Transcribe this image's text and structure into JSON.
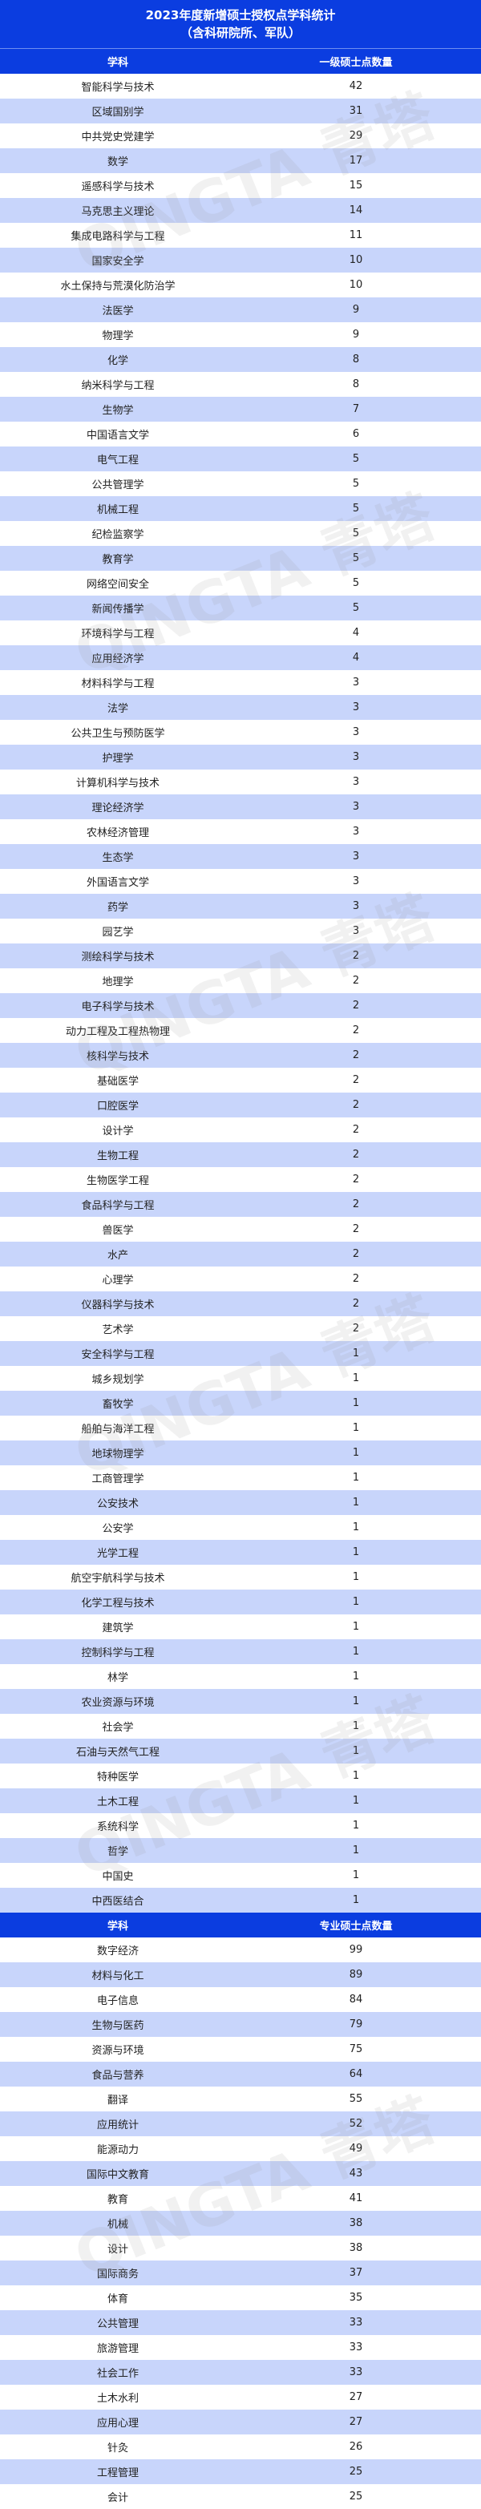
{
  "title": {
    "line1": "2023年度新增硕士授权点学科统计",
    "line2": "（含科研院所、军队）"
  },
  "colors": {
    "header": "#0b3de0",
    "row_alt": "#c8d5fb",
    "row": "#ffffff"
  },
  "watermark": "QINGTA 青塔",
  "table1": {
    "headers": [
      "学科",
      "一级硕士点数量"
    ],
    "rows": [
      [
        "智能科学与技术",
        "42"
      ],
      [
        "区域国别学",
        "31"
      ],
      [
        "中共党史党建学",
        "29"
      ],
      [
        "数学",
        "17"
      ],
      [
        "遥感科学与技术",
        "15"
      ],
      [
        "马克思主义理论",
        "14"
      ],
      [
        "集成电路科学与工程",
        "11"
      ],
      [
        "国家安全学",
        "10"
      ],
      [
        "水土保持与荒漠化防治学",
        "10"
      ],
      [
        "法医学",
        "9"
      ],
      [
        "物理学",
        "9"
      ],
      [
        "化学",
        "8"
      ],
      [
        "纳米科学与工程",
        "8"
      ],
      [
        "生物学",
        "7"
      ],
      [
        "中国语言文学",
        "6"
      ],
      [
        "电气工程",
        "5"
      ],
      [
        "公共管理学",
        "5"
      ],
      [
        "机械工程",
        "5"
      ],
      [
        "纪检监察学",
        "5"
      ],
      [
        "教育学",
        "5"
      ],
      [
        "网络空间安全",
        "5"
      ],
      [
        "新闻传播学",
        "5"
      ],
      [
        "环境科学与工程",
        "4"
      ],
      [
        "应用经济学",
        "4"
      ],
      [
        "材料科学与工程",
        "3"
      ],
      [
        "法学",
        "3"
      ],
      [
        "公共卫生与预防医学",
        "3"
      ],
      [
        "护理学",
        "3"
      ],
      [
        "计算机科学与技术",
        "3"
      ],
      [
        "理论经济学",
        "3"
      ],
      [
        "农林经济管理",
        "3"
      ],
      [
        "生态学",
        "3"
      ],
      [
        "外国语言文学",
        "3"
      ],
      [
        "药学",
        "3"
      ],
      [
        "园艺学",
        "3"
      ],
      [
        "测绘科学与技术",
        "2"
      ],
      [
        "地理学",
        "2"
      ],
      [
        "电子科学与技术",
        "2"
      ],
      [
        "动力工程及工程热物理",
        "2"
      ],
      [
        "核科学与技术",
        "2"
      ],
      [
        "基础医学",
        "2"
      ],
      [
        "口腔医学",
        "2"
      ],
      [
        "设计学",
        "2"
      ],
      [
        "生物工程",
        "2"
      ],
      [
        "生物医学工程",
        "2"
      ],
      [
        "食品科学与工程",
        "2"
      ],
      [
        "兽医学",
        "2"
      ],
      [
        "水产",
        "2"
      ],
      [
        "心理学",
        "2"
      ],
      [
        "仪器科学与技术",
        "2"
      ],
      [
        "艺术学",
        "2"
      ],
      [
        "安全科学与工程",
        "1"
      ],
      [
        "城乡规划学",
        "1"
      ],
      [
        "畜牧学",
        "1"
      ],
      [
        "船舶与海洋工程",
        "1"
      ],
      [
        "地球物理学",
        "1"
      ],
      [
        "工商管理学",
        "1"
      ],
      [
        "公安技术",
        "1"
      ],
      [
        "公安学",
        "1"
      ],
      [
        "光学工程",
        "1"
      ],
      [
        "航空宇航科学与技术",
        "1"
      ],
      [
        "化学工程与技术",
        "1"
      ],
      [
        "建筑学",
        "1"
      ],
      [
        "控制科学与工程",
        "1"
      ],
      [
        "林学",
        "1"
      ],
      [
        "农业资源与环境",
        "1"
      ],
      [
        "社会学",
        "1"
      ],
      [
        "石油与天然气工程",
        "1"
      ],
      [
        "特种医学",
        "1"
      ],
      [
        "土木工程",
        "1"
      ],
      [
        "系统科学",
        "1"
      ],
      [
        "哲学",
        "1"
      ],
      [
        "中国史",
        "1"
      ],
      [
        "中西医结合",
        "1"
      ]
    ]
  },
  "table2": {
    "headers": [
      "学科",
      "专业硕士点数量"
    ],
    "rows": [
      [
        "数字经济",
        "99"
      ],
      [
        "材料与化工",
        "89"
      ],
      [
        "电子信息",
        "84"
      ],
      [
        "生物与医药",
        "79"
      ],
      [
        "资源与环境",
        "75"
      ],
      [
        "食品与营养",
        "64"
      ],
      [
        "翻译",
        "55"
      ],
      [
        "应用统计",
        "52"
      ],
      [
        "能源动力",
        "49"
      ],
      [
        "国际中文教育",
        "43"
      ],
      [
        "教育",
        "41"
      ],
      [
        "机械",
        "38"
      ],
      [
        "设计",
        "38"
      ],
      [
        "国际商务",
        "37"
      ],
      [
        "体育",
        "35"
      ],
      [
        "公共管理",
        "33"
      ],
      [
        "旅游管理",
        "33"
      ],
      [
        "社会工作",
        "33"
      ],
      [
        "土木水利",
        "27"
      ],
      [
        "应用心理",
        "27"
      ],
      [
        "针灸",
        "26"
      ],
      [
        "工程管理",
        "25"
      ],
      [
        "会计",
        "25"
      ]
    ]
  }
}
